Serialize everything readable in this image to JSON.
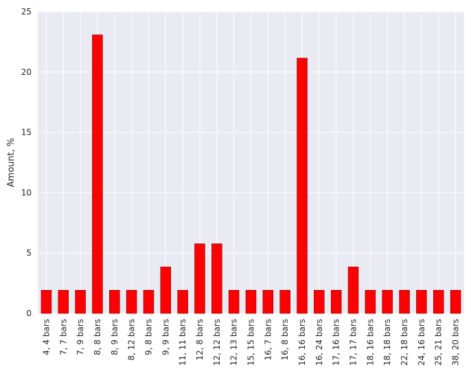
{
  "chart_data": {
    "type": "bar",
    "title": "",
    "xlabel": "",
    "ylabel": "Amount, %",
    "ylim": [
      0,
      25
    ],
    "yticks": [
      0,
      5,
      10,
      15,
      20,
      25
    ],
    "grid": true,
    "legend": "none",
    "colors": {
      "bar": "#ff0000",
      "bar_edge": "#7a0000",
      "plot_background": "#eaeaf2",
      "grid": "#ffffff"
    },
    "categories": [
      "4, 4 bars",
      "7, 7 bars",
      "7, 9 bars",
      "8, 8 bars",
      "8, 9 bars",
      "8, 12 bars",
      "9, 8 bars",
      "9, 9 bars",
      "11, 11 bars",
      "12, 8 bars",
      "12, 12 bars",
      "12, 13 bars",
      "15, 15 bars",
      "16, 7 bars",
      "16, 8 bars",
      "16, 16 bars",
      "16, 24 bars",
      "17, 16 bars",
      "17, 17 bars",
      "18, 16 bars",
      "18, 18 bars",
      "22, 18 bars",
      "24, 16 bars",
      "25, 21 bars",
      "38, 20 bars"
    ],
    "values": [
      1.92,
      1.92,
      1.92,
      23.08,
      1.92,
      1.92,
      1.92,
      3.85,
      1.92,
      5.77,
      5.77,
      1.92,
      1.92,
      1.92,
      1.92,
      21.15,
      1.92,
      1.92,
      3.85,
      1.92,
      1.92,
      1.92,
      1.92,
      1.92,
      1.92
    ]
  }
}
